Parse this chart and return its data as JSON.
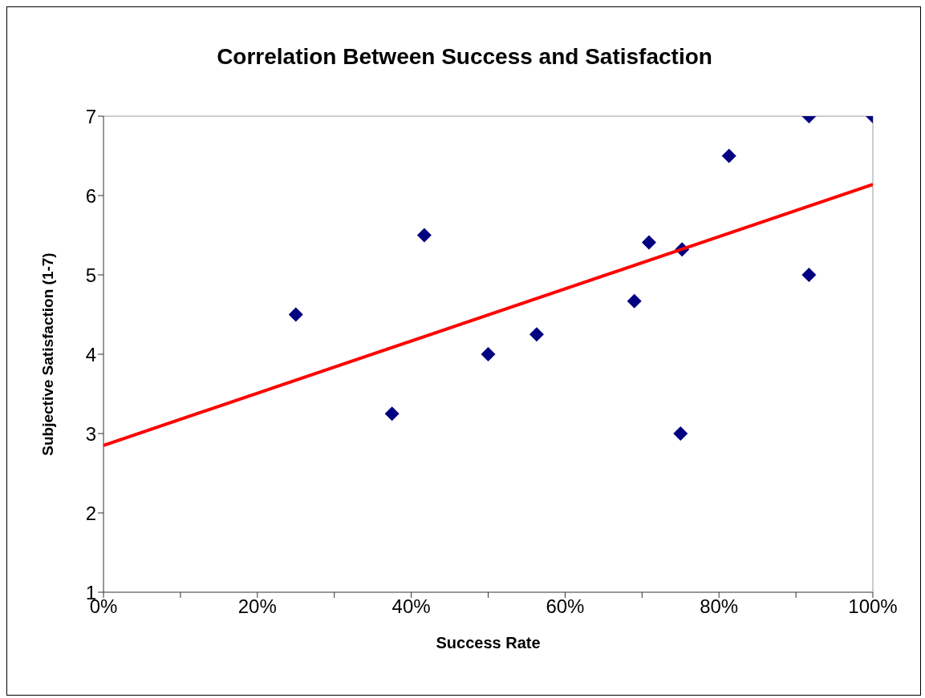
{
  "chart_data": {
    "type": "scatter",
    "title": "Correlation Between Success and Satisfaction",
    "xlabel": "Success Rate",
    "ylabel": "Subjective Satisfaction  (1-7)",
    "marker": "diamond",
    "grid": false,
    "legend": false,
    "xlim": [
      0,
      100
    ],
    "ylim": [
      1,
      7
    ],
    "xticks": [
      {
        "value": 0,
        "label": "0%"
      },
      {
        "value": 10,
        "label": null
      },
      {
        "value": 20,
        "label": "20%"
      },
      {
        "value": 30,
        "label": null
      },
      {
        "value": 40,
        "label": "40%"
      },
      {
        "value": 50,
        "label": null
      },
      {
        "value": 60,
        "label": "60%"
      },
      {
        "value": 70,
        "label": null
      },
      {
        "value": 80,
        "label": "80%"
      },
      {
        "value": 90,
        "label": null
      },
      {
        "value": 100,
        "label": "100%"
      }
    ],
    "yticks": [
      1,
      2,
      3,
      4,
      5,
      6,
      7
    ],
    "series": [
      {
        "color": "#000080",
        "x": [
          25,
          37.5,
          41.7,
          50,
          56.3,
          69,
          70.9,
          75.2,
          75,
          81.3,
          91.7,
          91.7,
          100
        ],
        "values": [
          4.5,
          3.25,
          5.5,
          4,
          4.25,
          4.67,
          5.41,
          5.32,
          3,
          6.5,
          7,
          5,
          7
        ]
      },
      {
        "type": "line",
        "color": "#ff0000",
        "marker": "none",
        "x": [
          0,
          100
        ],
        "values": [
          2.85,
          6.14
        ]
      }
    ]
  }
}
